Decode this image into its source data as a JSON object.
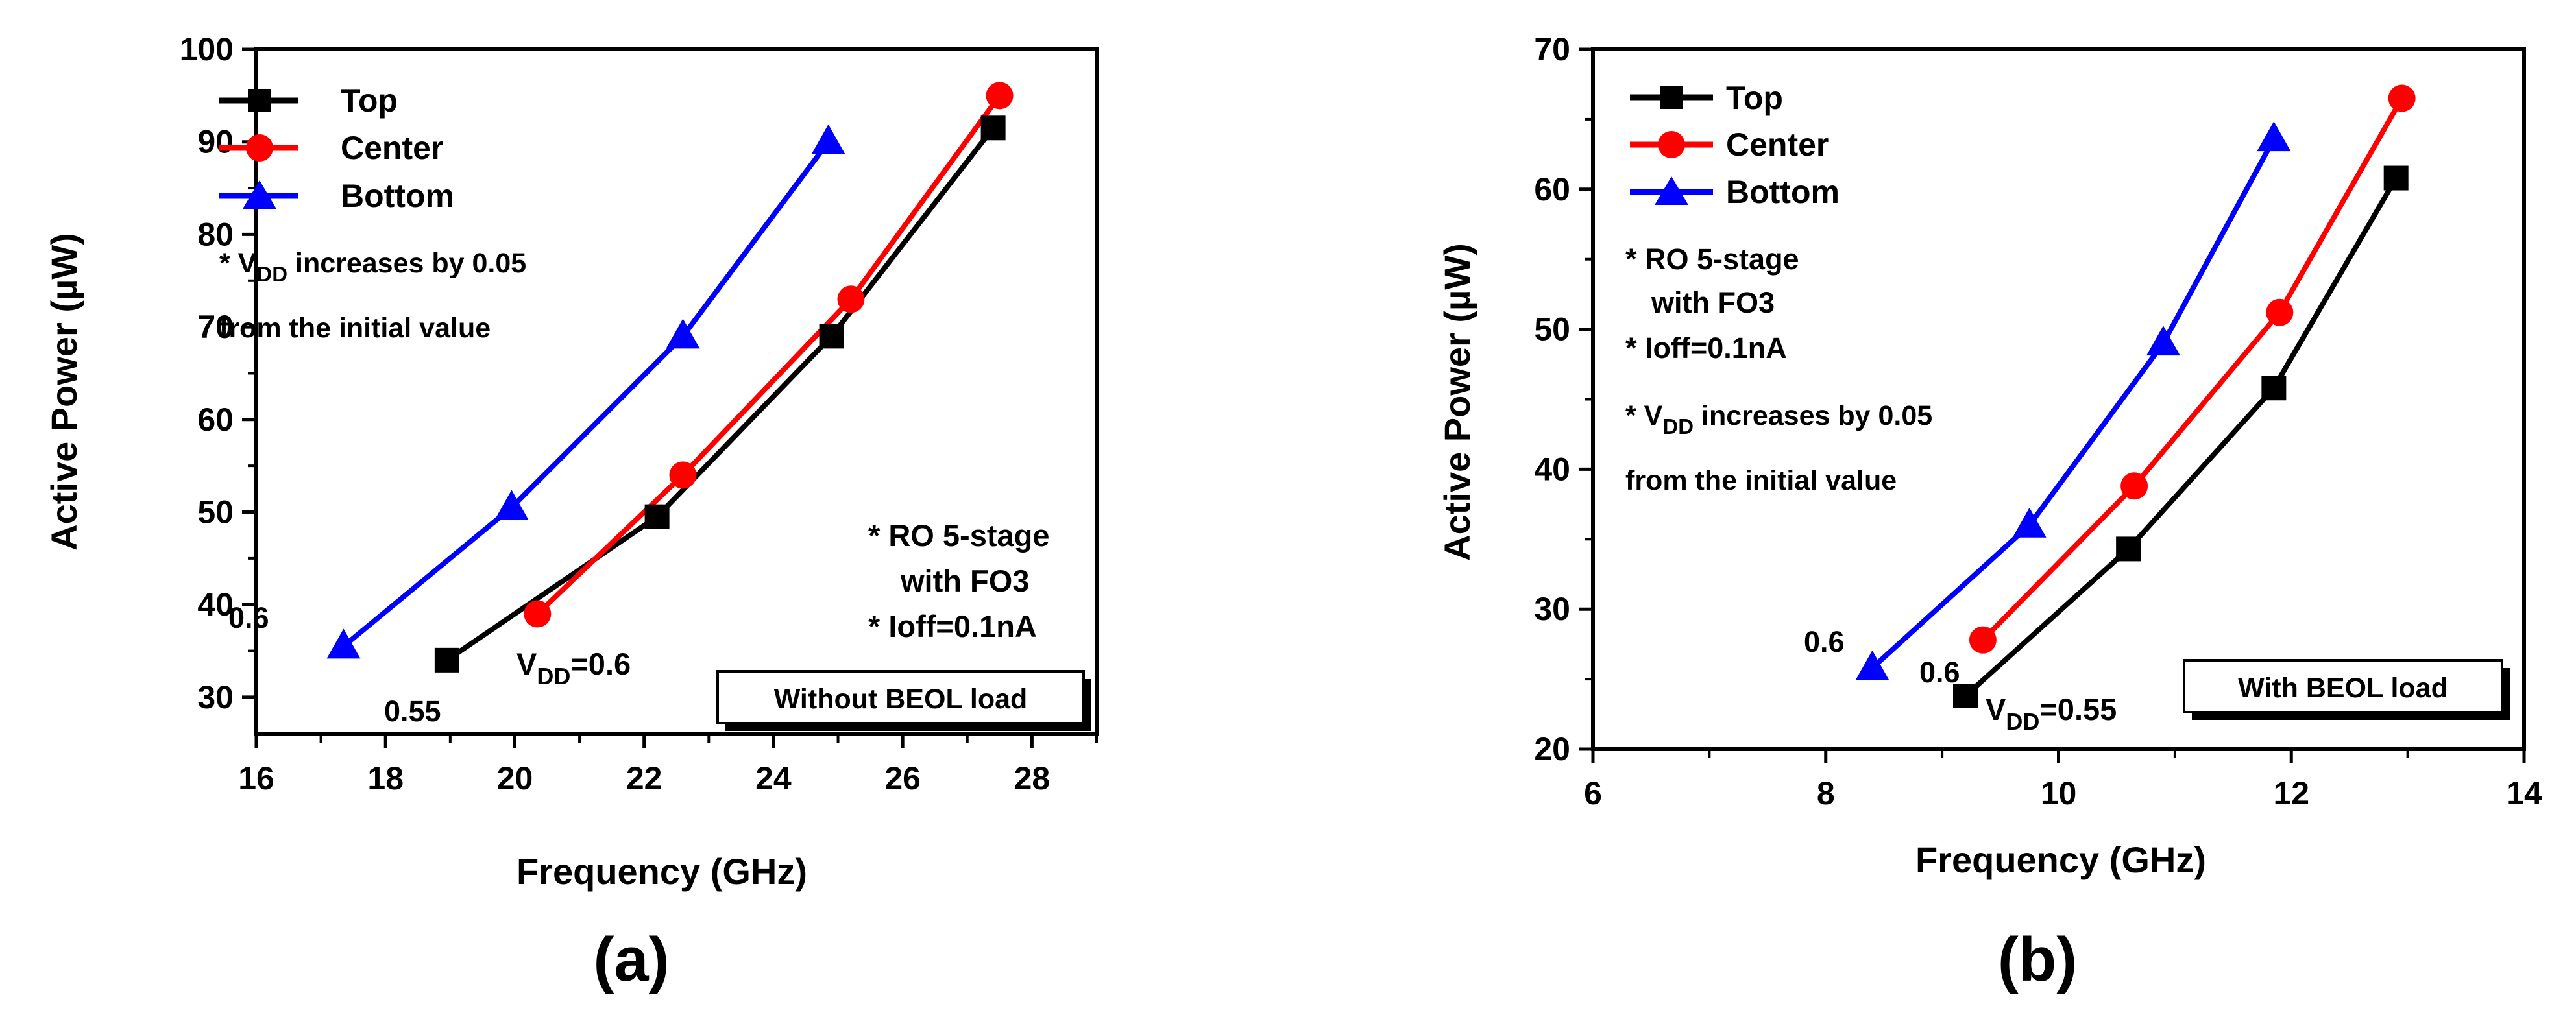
{
  "chart_data": [
    {
      "type": "line",
      "panel_label": "(a)",
      "xlabel": "Frequency (GHz)",
      "ylabel_prefix": "Active Power (",
      "ylabel_unit": "µW",
      "ylabel_suffix": ")",
      "xlim": [
        16,
        29
      ],
      "ylim": [
        26,
        100
      ],
      "xticks": [
        16,
        18,
        20,
        22,
        24,
        26,
        28
      ],
      "yticks": [
        30,
        40,
        50,
        60,
        70,
        80,
        90,
        100
      ],
      "series": [
        {
          "name": "Top",
          "color": "#000000",
          "marker": "square",
          "x": [
            18.95,
            22.2,
            24.9,
            27.4
          ],
          "y": [
            34,
            49.5,
            69,
            91.5
          ]
        },
        {
          "name": "Center",
          "color": "#ff0000",
          "marker": "circle",
          "x": [
            20.35,
            22.6,
            25.2,
            27.5
          ],
          "y": [
            39,
            54,
            73,
            95
          ]
        },
        {
          "name": "Bottom",
          "color": "#0000ff",
          "marker": "triangle",
          "x": [
            17.35,
            19.95,
            22.6,
            24.85
          ],
          "y": [
            35.5,
            50.5,
            69,
            90
          ]
        }
      ],
      "annotations": {
        "vdd_note_line1_pre": "* V",
        "vdd_note_line1_sub": "DD",
        "vdd_note_line1_post": " increases by 0.05",
        "vdd_note_line2": "from the initial value",
        "ro_line1": "* RO 5-stage",
        "ro_line2": "with FO3",
        "ioff": "* Ioff=0.1nA",
        "box_label": "Without BEOL load",
        "label_06": "0.6",
        "label_055": "0.55",
        "vdd_start_pre": "V",
        "vdd_start_sub": "DD",
        "vdd_start_post": "=0.6"
      }
    },
    {
      "type": "line",
      "panel_label": "(b)",
      "xlabel": "Frequency (GHz)",
      "ylabel_prefix": "Active Power (",
      "ylabel_unit": "µW",
      "ylabel_suffix": ")",
      "xlim": [
        6,
        14
      ],
      "ylim": [
        20,
        70
      ],
      "xticks": [
        6,
        8,
        10,
        12,
        14
      ],
      "yticks": [
        20,
        30,
        40,
        50,
        60,
        70
      ],
      "series": [
        {
          "name": "Top",
          "color": "#000000",
          "marker": "square",
          "x": [
            9.2,
            10.6,
            11.85,
            12.9
          ],
          "y": [
            23.8,
            34.3,
            45.8,
            60.8
          ]
        },
        {
          "name": "Center",
          "color": "#ff0000",
          "marker": "circle",
          "x": [
            9.35,
            10.65,
            11.9,
            12.95
          ],
          "y": [
            27.8,
            38.8,
            51.2,
            66.5
          ]
        },
        {
          "name": "Bottom",
          "color": "#0000ff",
          "marker": "triangle",
          "x": [
            8.4,
            9.75,
            10.9,
            11.85
          ],
          "y": [
            25.8,
            36,
            49,
            63.6
          ]
        }
      ],
      "annotations": {
        "ro_line1": "* RO 5-stage",
        "ro_line2": "with FO3",
        "ioff": "* Ioff=0.1nA",
        "vdd_note_line1_pre": "* V",
        "vdd_note_line1_sub": "DD",
        "vdd_note_line1_post": " increases by 0.05",
        "vdd_note_line2": "from the initial value",
        "box_label": "With BEOL load",
        "label_06_bottom": "0.6",
        "label_06_center": "0.6",
        "vdd_start_pre": "V",
        "vdd_start_sub": "DD",
        "vdd_start_post": "=0.55"
      }
    }
  ]
}
